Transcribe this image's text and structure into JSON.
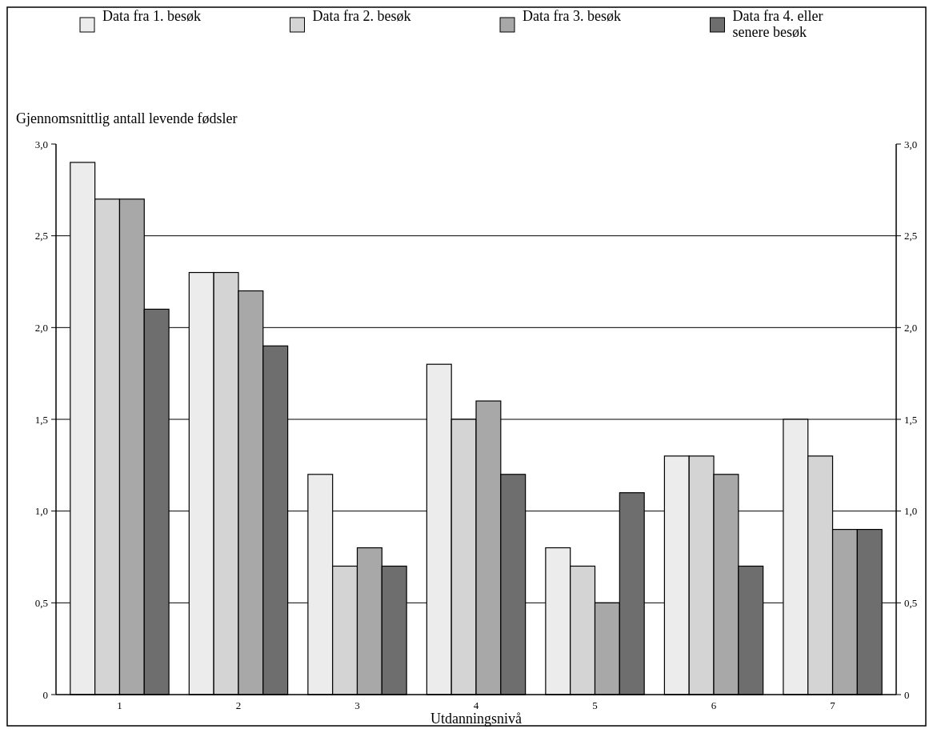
{
  "chart_data": {
    "type": "bar",
    "xlabel": "Utdanningsnivå",
    "ylabel": "Gjennomsnittlig antall levende fødsler",
    "categories": [
      "1",
      "2",
      "3",
      "4",
      "5",
      "6",
      "7"
    ],
    "series": [
      {
        "name": "Data fra 1. besøk",
        "color": "#ececec",
        "values": [
          2.9,
          2.3,
          1.2,
          1.8,
          0.8,
          1.3,
          1.5
        ]
      },
      {
        "name": "Data fra 2. besøk",
        "color": "#d4d4d4",
        "values": [
          2.7,
          2.3,
          0.7,
          1.5,
          0.7,
          1.3,
          1.3
        ]
      },
      {
        "name": "Data fra 3. besøk",
        "color": "#a8a8a8",
        "values": [
          2.7,
          2.2,
          0.8,
          1.6,
          0.5,
          1.2,
          0.9
        ]
      },
      {
        "name": "Data fra 4. eller senere besøk",
        "color": "#6e6e6e",
        "values": [
          2.1,
          1.9,
          0.7,
          1.2,
          1.1,
          0.7,
          0.9
        ]
      }
    ],
    "ylim": [
      0,
      3
    ],
    "yticks": [
      {
        "value": 0,
        "label": "0"
      },
      {
        "value": 0.5,
        "label": "0,5"
      },
      {
        "value": 1,
        "label": "1,0"
      },
      {
        "value": 1.5,
        "label": "1,5"
      },
      {
        "value": 2,
        "label": "2,0"
      },
      {
        "value": 2.5,
        "label": "2,5"
      },
      {
        "value": 3,
        "label": "3,0"
      }
    ],
    "y2lim": [
      0,
      3
    ],
    "y2ticks": [
      {
        "value": 0,
        "label": "0"
      },
      {
        "value": 0.5,
        "label": "0,5"
      },
      {
        "value": 1,
        "label": "1,0"
      },
      {
        "value": 1.5,
        "label": "1,5"
      },
      {
        "value": 2,
        "label": "2,0"
      },
      {
        "value": 2.5,
        "label": "2,5"
      },
      {
        "value": 3,
        "label": "3,0"
      }
    ],
    "grid": "y",
    "legend": "top"
  }
}
